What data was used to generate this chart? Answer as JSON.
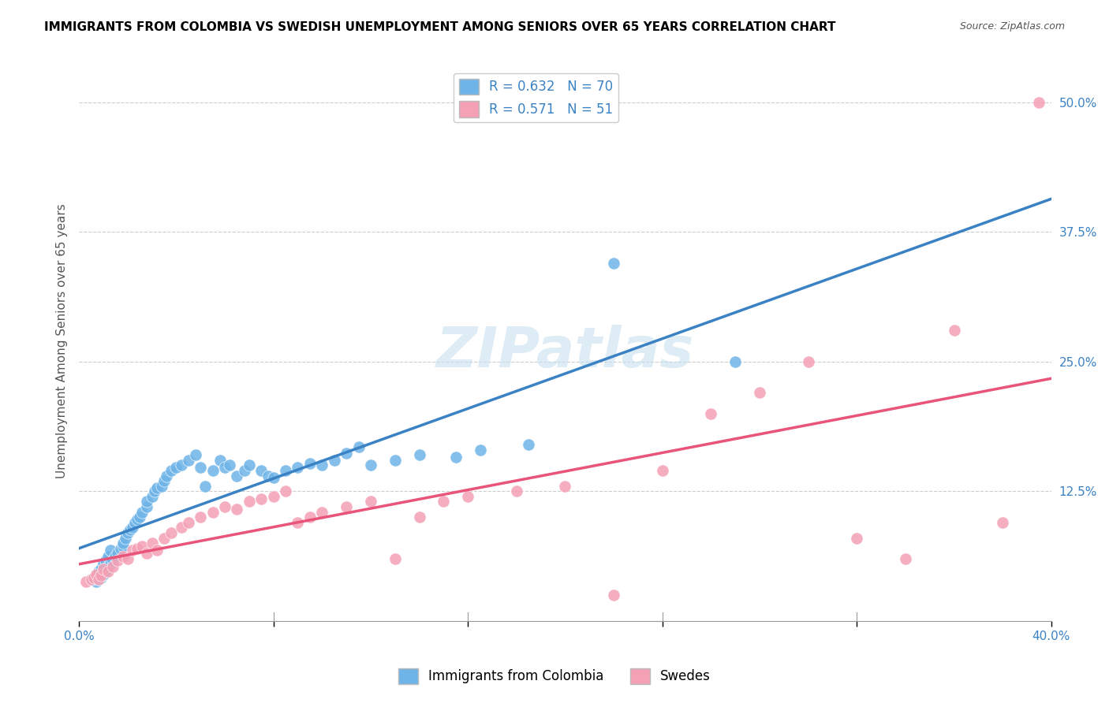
{
  "title": "IMMIGRANTS FROM COLOMBIA VS SWEDISH UNEMPLOYMENT AMONG SENIORS OVER 65 YEARS CORRELATION CHART",
  "source": "Source: ZipAtlas.com",
  "ylabel": "Unemployment Among Seniors over 65 years",
  "xlim": [
    0.0,
    0.4
  ],
  "ylim": [
    0.0,
    0.54
  ],
  "xtick_positions": [
    0.0,
    0.08,
    0.16,
    0.24,
    0.32,
    0.4
  ],
  "xticklabels": [
    "0.0%",
    "",
    "",
    "",
    "",
    "40.0%"
  ],
  "yticks_right": [
    0.0,
    0.125,
    0.25,
    0.375,
    0.5
  ],
  "yticklabels_right": [
    "",
    "12.5%",
    "25.0%",
    "37.5%",
    "50.0%"
  ],
  "legend_r1": "R = 0.632",
  "legend_n1": "N = 70",
  "legend_r2": "R = 0.571",
  "legend_n2": "N = 51",
  "blue_color": "#6EB4E8",
  "pink_color": "#F4A0B5",
  "blue_line_color": "#3B82C4",
  "pink_line_color": "#E8547A",
  "dashed_line_color": "#AAAAAA",
  "watermark": "ZIPatlas",
  "tick_label_color": "#3B82C4",
  "colombia_x": [
    0.005,
    0.006,
    0.007,
    0.007,
    0.008,
    0.008,
    0.009,
    0.009,
    0.01,
    0.01,
    0.011,
    0.011,
    0.012,
    0.012,
    0.013,
    0.013,
    0.014,
    0.015,
    0.016,
    0.017,
    0.018,
    0.018,
    0.019,
    0.02,
    0.021,
    0.022,
    0.023,
    0.024,
    0.025,
    0.026,
    0.028,
    0.028,
    0.03,
    0.031,
    0.032,
    0.034,
    0.035,
    0.036,
    0.038,
    0.04,
    0.042,
    0.045,
    0.048,
    0.05,
    0.052,
    0.055,
    0.058,
    0.06,
    0.062,
    0.065,
    0.068,
    0.07,
    0.075,
    0.078,
    0.08,
    0.085,
    0.09,
    0.095,
    0.1,
    0.105,
    0.11,
    0.115,
    0.12,
    0.13,
    0.14,
    0.155,
    0.165,
    0.185,
    0.22,
    0.27
  ],
  "colombia_y": [
    0.04,
    0.042,
    0.038,
    0.045,
    0.04,
    0.048,
    0.042,
    0.05,
    0.045,
    0.055,
    0.048,
    0.058,
    0.052,
    0.062,
    0.055,
    0.068,
    0.058,
    0.062,
    0.065,
    0.07,
    0.072,
    0.075,
    0.08,
    0.085,
    0.088,
    0.09,
    0.095,
    0.098,
    0.1,
    0.105,
    0.11,
    0.115,
    0.12,
    0.125,
    0.128,
    0.13,
    0.135,
    0.14,
    0.145,
    0.148,
    0.15,
    0.155,
    0.16,
    0.148,
    0.13,
    0.145,
    0.155,
    0.148,
    0.15,
    0.14,
    0.145,
    0.15,
    0.145,
    0.14,
    0.138,
    0.145,
    0.148,
    0.152,
    0.15,
    0.155,
    0.162,
    0.168,
    0.15,
    0.155,
    0.16,
    0.158,
    0.165,
    0.17,
    0.345,
    0.25
  ],
  "swedes_x": [
    0.003,
    0.005,
    0.006,
    0.007,
    0.008,
    0.009,
    0.01,
    0.012,
    0.014,
    0.016,
    0.018,
    0.02,
    0.022,
    0.024,
    0.026,
    0.028,
    0.03,
    0.032,
    0.035,
    0.038,
    0.042,
    0.045,
    0.05,
    0.055,
    0.06,
    0.065,
    0.07,
    0.075,
    0.08,
    0.085,
    0.09,
    0.095,
    0.1,
    0.11,
    0.12,
    0.13,
    0.14,
    0.15,
    0.16,
    0.18,
    0.2,
    0.22,
    0.24,
    0.26,
    0.28,
    0.3,
    0.32,
    0.34,
    0.36,
    0.38,
    0.395
  ],
  "swedes_y": [
    0.038,
    0.04,
    0.042,
    0.045,
    0.04,
    0.044,
    0.05,
    0.048,
    0.052,
    0.058,
    0.062,
    0.06,
    0.068,
    0.07,
    0.072,
    0.065,
    0.075,
    0.068,
    0.08,
    0.085,
    0.09,
    0.095,
    0.1,
    0.105,
    0.11,
    0.108,
    0.115,
    0.118,
    0.12,
    0.125,
    0.095,
    0.1,
    0.105,
    0.11,
    0.115,
    0.06,
    0.1,
    0.115,
    0.12,
    0.125,
    0.13,
    0.025,
    0.145,
    0.2,
    0.22,
    0.25,
    0.08,
    0.06,
    0.28,
    0.095,
    0.5
  ]
}
